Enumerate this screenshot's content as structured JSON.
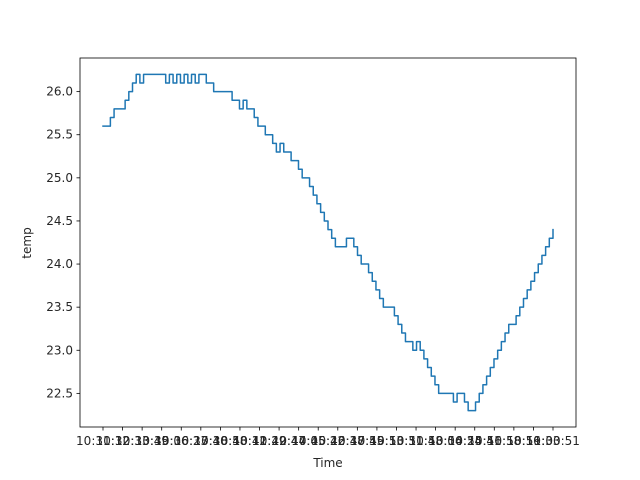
{
  "chart_data": {
    "type": "line",
    "title": "",
    "xlabel": "Time",
    "ylabel": "temp",
    "grid": false,
    "legend": "none",
    "color": "#1f77b4",
    "x_tick_labels": [
      "10:31:12",
      "10:32:33",
      "10:33:49",
      "10:35:06",
      "10:36:23",
      "10:37:40",
      "10:38:58",
      "10:40:12",
      "10:41:29",
      "10:42:47",
      "10:44:05",
      "10:45:22",
      "10:46:38",
      "10:47:55",
      "10:49:13",
      "10:50:31",
      "10:51:48",
      "10:53:06",
      "10:54:24",
      "10:55:41",
      "10:56:58",
      "10:58:16",
      "10:59:33",
      "11:00:51"
    ],
    "yticks": [
      22.5,
      23.0,
      23.5,
      24.0,
      24.5,
      25.0,
      25.5,
      26.0
    ],
    "ylim": [
      22.11,
      26.39
    ],
    "series": [
      {
        "values": [
          25.6,
          25.6,
          25.7,
          25.8,
          25.8,
          25.8,
          25.9,
          26.0,
          26.1,
          26.2,
          26.1,
          26.2,
          26.2,
          26.2,
          26.2,
          26.2,
          26.2,
          26.1,
          26.2,
          26.1,
          26.2,
          26.1,
          26.2,
          26.1,
          26.2,
          26.1,
          26.2,
          26.2,
          26.1,
          26.1,
          26.0,
          26.0,
          26.0,
          26.0,
          26.0,
          25.9,
          25.9,
          25.8,
          25.9,
          25.8,
          25.8,
          25.7,
          25.6,
          25.6,
          25.5,
          25.5,
          25.4,
          25.3,
          25.4,
          25.3,
          25.3,
          25.2,
          25.2,
          25.1,
          25.0,
          25.0,
          24.9,
          24.8,
          24.7,
          24.6,
          24.5,
          24.4,
          24.3,
          24.2,
          24.2,
          24.2,
          24.3,
          24.3,
          24.2,
          24.1,
          24.0,
          24.0,
          23.9,
          23.8,
          23.7,
          23.6,
          23.5,
          23.5,
          23.5,
          23.4,
          23.3,
          23.2,
          23.1,
          23.1,
          23.0,
          23.1,
          23.0,
          22.9,
          22.8,
          22.7,
          22.6,
          22.5,
          22.5,
          22.5,
          22.5,
          22.4,
          22.5,
          22.5,
          22.4,
          22.3,
          22.3,
          22.4,
          22.5,
          22.6,
          22.7,
          22.8,
          22.9,
          23.0,
          23.1,
          23.2,
          23.3,
          23.3,
          23.4,
          23.5,
          23.6,
          23.7,
          23.8,
          23.9,
          24.0,
          24.1,
          24.2,
          24.3,
          24.4
        ]
      }
    ]
  }
}
